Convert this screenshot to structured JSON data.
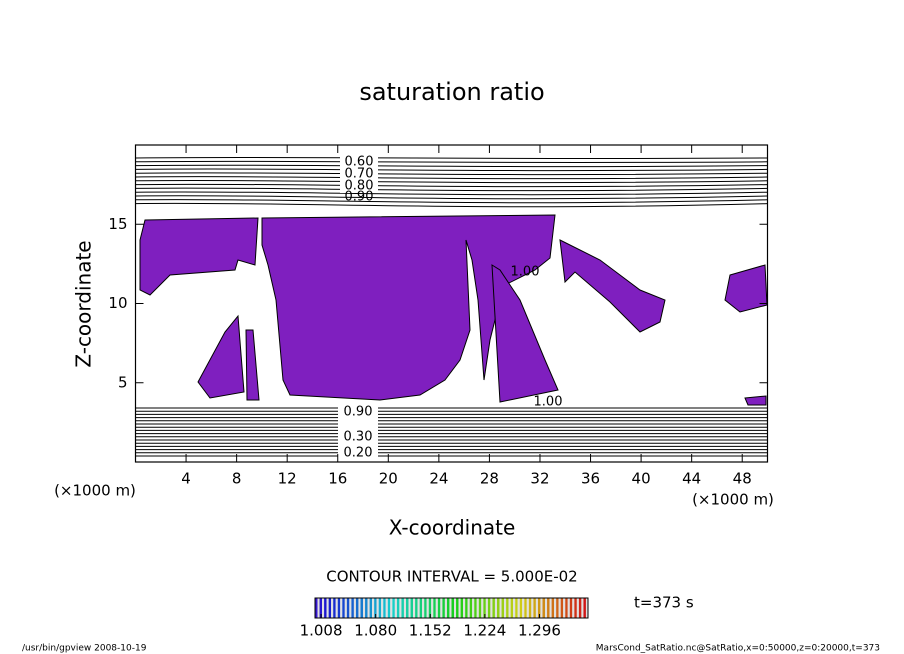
{
  "chart_data": {
    "type": "contour",
    "title": "saturation ratio",
    "x_label": "X-coordinate",
    "y_label": "Z-coordinate",
    "x_unit": "(×1000 m)",
    "y_unit": "(×1000 m)",
    "xlim": [
      0,
      50
    ],
    "ylim": [
      0,
      20
    ],
    "xticks": [
      4,
      8,
      12,
      16,
      20,
      24,
      28,
      32,
      36,
      40,
      44,
      48
    ],
    "yticks": [
      5,
      10,
      15
    ],
    "fill_color": "#7f1fbf",
    "contour_labels": [
      "0.60",
      "0.70",
      "0.80",
      "0.90",
      "1.00",
      "0.20",
      "0.30",
      "0.90",
      "1.00"
    ],
    "contour_interval": "CONTOUR INTERVAL = 5.000E-02",
    "time_label": "t=373 s",
    "colorbar": {
      "lim": [
        1.0,
        1.36
      ],
      "ticks": [
        1.008,
        1.08,
        1.152,
        1.224,
        1.296
      ],
      "tick_labels": [
        "1.008",
        "1.080",
        "1.152",
        "1.224",
        "1.296"
      ]
    },
    "footer_left": "/usr/bin/gpview  2008-10-19",
    "footer_right": "MarsCond_SatRatio.nc@SatRatio,x=0:50000,z=0:20000,t=373"
  }
}
